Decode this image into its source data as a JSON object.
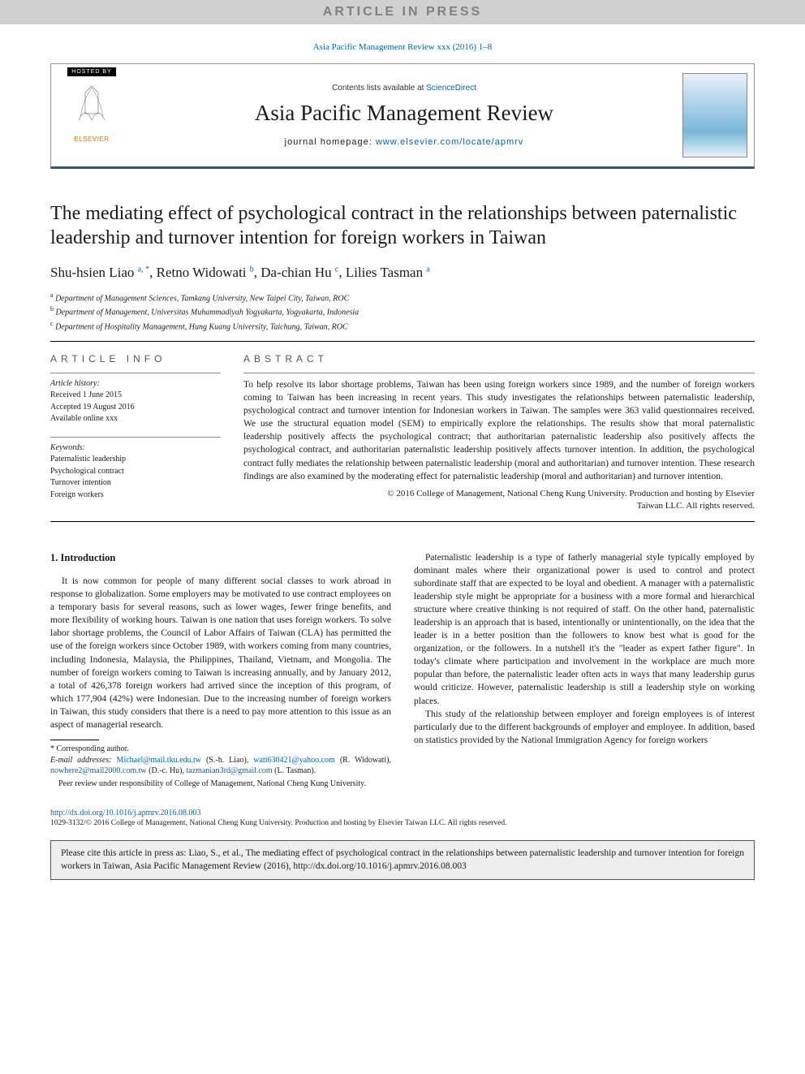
{
  "banner": "ARTICLE IN PRESS",
  "journal_ref_prefix": "Asia Pacific Management Review xxx (2016) 1–8",
  "header": {
    "hosted_by": "HOSTED BY",
    "elsevier": "ELSEVIER",
    "contents_prefix": "Contents lists available at ",
    "contents_link": "ScienceDirect",
    "journal_name": "Asia Pacific Management Review",
    "homepage_prefix": "journal homepage: ",
    "homepage_link": "www.elsevier.com/locate/apmrv"
  },
  "title": "The mediating effect of psychological contract in the relationships between paternalistic leadership and turnover intention for foreign workers in Taiwan",
  "authors_html": "Shu-hsien Liao <sup>a, *</sup>, Retno Widowati <sup>b</sup>, Da-chian Hu <sup>c</sup>, Lilies Tasman <sup>a</sup>",
  "affiliations": [
    "a Department of Management Sciences, Tamkang University, New Taipei City, Taiwan, ROC",
    "b Department of Management, Universitas Muhammadiyah Yogyakarta, Yogyakarta, Indonesia",
    "c Department of Hospitality Management, Hung Kuang University, Taichung, Taiwan, ROC"
  ],
  "info": {
    "head": "article info",
    "history_label": "Article history:",
    "history": [
      "Received 1 June 2015",
      "Accepted 19 August 2016",
      "Available online xxx"
    ],
    "keywords_label": "Keywords:",
    "keywords": [
      "Paternalistic leadership",
      "Psychological contract",
      "Turnover intention",
      "Foreign workers"
    ]
  },
  "abstract": {
    "head": "abstract",
    "text": "To help resolve its labor shortage problems, Taiwan has been using foreign workers since 1989, and the number of foreign workers coming to Taiwan has been increasing in recent years. This study investigates the relationships between paternalistic leadership, psychological contract and turnover intention for Indonesian workers in Taiwan. The samples were 363 valid questionnaires received. We use the structural equation model (SEM) to empirically explore the relationships. The results show that moral paternalistic leadership positively affects the psychological contract; that authoritarian paternalistic leadership also positively affects the psychological contract, and authoritarian paternalistic leadership positively affects turnover intention. In addition, the psychological contract fully mediates the relationship between paternalistic leadership (moral and authoritarian) and turnover intention. These research findings are also examined by the moderating effect for paternalistic leadership (moral and authoritarian) and turnover intention.",
    "copyright1": "© 2016 College of Management, National Cheng Kung University. Production and hosting by Elsevier",
    "copyright2": "Taiwan LLC. All rights reserved."
  },
  "intro_heading": "1. Introduction",
  "intro_paragraphs": [
    "It is now common for people of many different social classes to work abroad in response to globalization. Some employers may be motivated to use contract employees on a temporary basis for several reasons, such as lower wages, fewer fringe benefits, and more flexibility of working hours. Taiwan is one nation that uses foreign workers. To solve labor shortage problems, the Council of Labor Affairs of Taiwan (CLA) has permitted the use of the foreign workers since October 1989, with workers coming from many countries, including Indonesia, Malaysia, the Philippines, Thailand, Vietnam, and Mongolia. The number of foreign workers coming to Taiwan is increasing annually, and by January 2012, a total of 426,378 foreign workers had arrived since the inception of this program, of which 177,904 (42%) were Indonesian. Due to the increasing number of foreign workers in Taiwan, this study considers that there is a need to pay more attention to this issue as an aspect of managerial research.",
    "Paternalistic leadership is a type of fatherly managerial style typically employed by dominant males where their organizational power is used to control and protect subordinate staff that are expected to be loyal and obedient. A manager with a paternalistic leadership style might be appropriate for a business with a more formal and hierarchical structure where creative thinking is not required of staff. On the other hand, paternalistic leadership is an approach that is based, intentionally or unintentionally, on the idea that the leader is in a better position than the followers to know best what is good for the organization, or the followers. In a nutshell it's the \"leader as expert father figure\". In today's climate where participation and involvement in the workplace are much more popular than before, the paternalistic leader often acts in ways that many leadership gurus would criticize. However, paternalistic leadership is still a leadership style on working places.",
    "This study of the relationship between employer and foreign employees is of interest particularly due to the different backgrounds of employer and employee. In addition, based on statistics provided by the National Immigration Agency for foreign workers"
  ],
  "footnotes": {
    "corr": "* Corresponding author.",
    "emails_label": "E-mail addresses: ",
    "emails": [
      {
        "addr": "Michael@mail.tku.edu.tw",
        "who": " (S.-h. Liao), "
      },
      {
        "addr": "wati630421@yahoo.com",
        "who": " (R. Widowati), "
      },
      {
        "addr": "nowhere2@mail2000.com.tw",
        "who": " (D.-c. Hu), "
      },
      {
        "addr": "tazmanian3rd@gmail.com",
        "who": " (L. Tasman)."
      }
    ],
    "peer": "Peer review under responsibility of College of Management, National Cheng Kung University."
  },
  "doi": "http://dx.doi.org/10.1016/j.apmrv.2016.08.003",
  "issn_line": "1029-3132/© 2016 College of Management, National Cheng Kung University. Production and hosting by Elsevier Taiwan LLC. All rights reserved.",
  "cite_box": "Please cite this article in press as: Liao, S., et al., The mediating effect of psychological contract in the relationships between paternalistic leadership and turnover intention for foreign workers in Taiwan, Asia Pacific Management Review (2016), http://dx.doi.org/10.1016/j.apmrv.2016.08.003",
  "colors": {
    "link": "#0066aa",
    "border_blue": "#2a5a8a",
    "elsevier_orange": "#e57200"
  }
}
